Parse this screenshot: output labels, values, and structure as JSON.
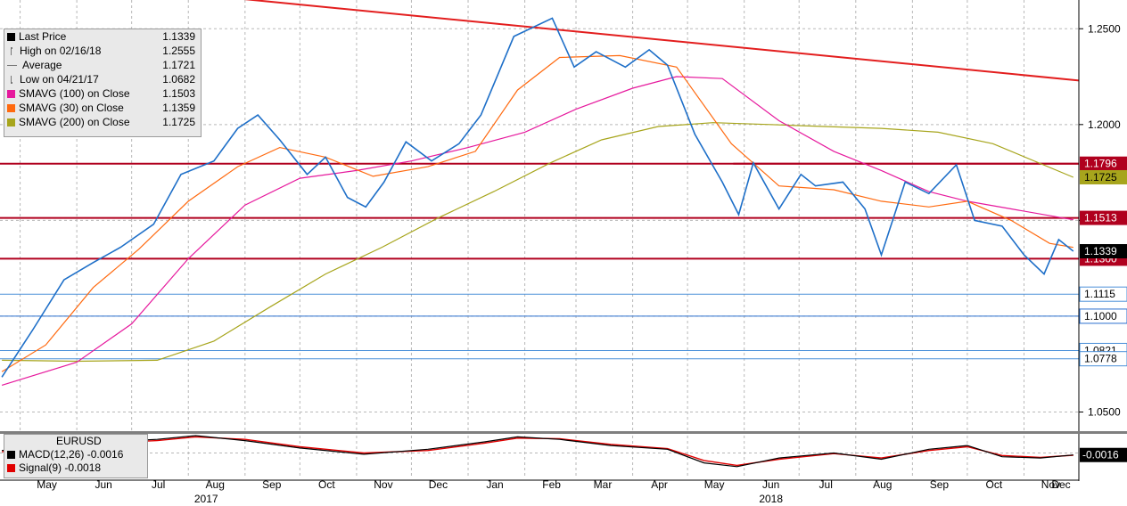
{
  "legend": {
    "items": [
      {
        "label": "Last Price",
        "value": "1.1339",
        "color": "#000000",
        "icon": "square"
      },
      {
        "label": "High on 02/16/18",
        "value": "1.2555",
        "color": "#777777",
        "icon": "high-marker"
      },
      {
        "label": "Average",
        "value": "1.1721",
        "color": "#777777",
        "icon": "average-marker"
      },
      {
        "label": "Low on 04/21/17",
        "value": "1.0682",
        "color": "#777777",
        "icon": "low-marker"
      },
      {
        "label": "SMAVG (100)  on Close",
        "value": "1.1503",
        "color": "#e6199d",
        "icon": "square"
      },
      {
        "label": "SMAVG (30)  on Close",
        "value": "1.1359",
        "color": "#ff6a10",
        "icon": "square"
      },
      {
        "label": "SMAVG (200)  on Close",
        "value": "1.1725",
        "color": "#a7a51c",
        "icon": "square"
      }
    ]
  },
  "macd_legend": {
    "title": "EURUSD",
    "items": [
      {
        "label": "MACD(12,26)",
        "value": "-0.0016",
        "color": "#000000"
      },
      {
        "label": "Signal(9)",
        "value": "-0.0018",
        "color": "#e00000"
      }
    ]
  },
  "chart_data": {
    "type": "line",
    "ylim": [
      1.04,
      1.265
    ],
    "y_ticks": [
      "1.2500",
      "1.2000",
      "1.1500",
      "1.1000",
      "1.0500"
    ],
    "x_ticks": [
      "May",
      "Jun",
      "Jul",
      "Aug",
      "Sep",
      "Oct",
      "Nov",
      "Dec",
      "Jan",
      "Feb",
      "Mar",
      "Apr",
      "May",
      "Jun",
      "Jul",
      "Aug",
      "Sep",
      "Oct",
      "Nov",
      "Dec"
    ],
    "year_labels": [
      "2017",
      "2018"
    ],
    "x_start": "2017-04-20",
    "x_end": "2018-12-01",
    "series": [
      {
        "name": "Last Price",
        "color": "#1e6fc8",
        "dates": [
          "2017-04-21",
          "2017-05-08",
          "2017-05-25",
          "2017-06-10",
          "2017-06-25",
          "2017-07-13",
          "2017-07-28",
          "2017-08-15",
          "2017-08-28",
          "2017-09-08",
          "2017-09-20",
          "2017-10-05",
          "2017-10-15",
          "2017-10-27",
          "2017-11-06",
          "2017-11-16",
          "2017-11-28",
          "2017-12-12",
          "2017-12-27",
          "2018-01-08",
          "2018-01-26",
          "2018-02-16",
          "2018-02-28",
          "2018-03-12",
          "2018-03-28",
          "2018-04-10",
          "2018-04-20",
          "2018-05-05",
          "2018-05-20",
          "2018-05-29",
          "2018-06-06",
          "2018-06-20",
          "2018-07-02",
          "2018-07-10",
          "2018-07-25",
          "2018-08-06",
          "2018-08-15",
          "2018-08-28",
          "2018-09-10",
          "2018-09-25",
          "2018-10-05",
          "2018-10-20",
          "2018-11-01",
          "2018-11-12",
          "2018-11-20",
          "2018-11-28"
        ],
        "values": [
          1.0682,
          1.093,
          1.119,
          1.128,
          1.136,
          1.148,
          1.174,
          1.181,
          1.198,
          1.205,
          1.192,
          1.174,
          1.183,
          1.162,
          1.157,
          1.17,
          1.191,
          1.181,
          1.19,
          1.205,
          1.246,
          1.2555,
          1.23,
          1.238,
          1.23,
          1.239,
          1.231,
          1.195,
          1.17,
          1.153,
          1.18,
          1.156,
          1.174,
          1.168,
          1.17,
          1.156,
          1.132,
          1.17,
          1.164,
          1.179,
          1.15,
          1.147,
          1.132,
          1.122,
          1.14,
          1.1339
        ]
      },
      {
        "name": "SMAVG (30)  on Close",
        "color": "#ff6a10",
        "dates": [
          "2017-04-21",
          "2017-05-15",
          "2017-06-10",
          "2017-07-05",
          "2017-08-01",
          "2017-08-28",
          "2017-09-20",
          "2017-10-15",
          "2017-11-10",
          "2017-12-10",
          "2018-01-05",
          "2018-01-28",
          "2018-02-20",
          "2018-03-25",
          "2018-04-25",
          "2018-05-25",
          "2018-06-20",
          "2018-07-20",
          "2018-08-15",
          "2018-09-10",
          "2018-10-01",
          "2018-10-25",
          "2018-11-15",
          "2018-11-28"
        ],
        "values": [
          1.071,
          1.085,
          1.115,
          1.135,
          1.16,
          1.178,
          1.188,
          1.183,
          1.173,
          1.178,
          1.186,
          1.218,
          1.235,
          1.236,
          1.23,
          1.19,
          1.168,
          1.166,
          1.16,
          1.157,
          1.16,
          1.15,
          1.138,
          1.1359
        ]
      },
      {
        "name": "SMAVG (100)  on Close",
        "color": "#e6199d",
        "dates": [
          "2017-04-21",
          "2017-06-01",
          "2017-07-01",
          "2017-08-01",
          "2017-09-01",
          "2017-10-01",
          "2017-11-01",
          "2017-12-01",
          "2018-01-01",
          "2018-02-01",
          "2018-03-01",
          "2018-04-01",
          "2018-04-25",
          "2018-05-20",
          "2018-06-20",
          "2018-07-20",
          "2018-08-15",
          "2018-09-10",
          "2018-10-01",
          "2018-10-25",
          "2018-11-28"
        ],
        "values": [
          1.064,
          1.076,
          1.096,
          1.13,
          1.158,
          1.172,
          1.176,
          1.181,
          1.188,
          1.196,
          1.208,
          1.219,
          1.225,
          1.224,
          1.202,
          1.186,
          1.176,
          1.165,
          1.16,
          1.156,
          1.1503
        ]
      },
      {
        "name": "SMAVG (200)  on Close",
        "color": "#a7a51c",
        "dates": [
          "2017-04-21",
          "2017-06-01",
          "2017-07-15",
          "2017-08-15",
          "2017-09-15",
          "2017-10-15",
          "2017-11-15",
          "2017-12-15",
          "2018-01-15",
          "2018-02-15",
          "2018-03-15",
          "2018-04-15",
          "2018-05-15",
          "2018-06-15",
          "2018-07-15",
          "2018-08-15",
          "2018-09-15",
          "2018-10-15",
          "2018-11-28"
        ],
        "values": [
          1.077,
          1.0765,
          1.077,
          1.087,
          1.105,
          1.122,
          1.136,
          1.151,
          1.165,
          1.18,
          1.192,
          1.199,
          1.201,
          1.2,
          1.199,
          1.198,
          1.196,
          1.19,
          1.1725
        ]
      }
    ],
    "trendline": {
      "color": "#e31e1e",
      "dates": [
        "2017-01-01",
        "2018-12-01"
      ],
      "values": [
        1.288,
        1.223
      ]
    },
    "horizontal_lines": [
      {
        "value": 1.1796,
        "label": "1.1796",
        "color": "#b0001e",
        "style": "box"
      },
      {
        "value": 1.1513,
        "label": "1.1513",
        "color": "#b0001e",
        "style": "box"
      },
      {
        "value": 1.13,
        "label": "1.1300",
        "color": "#b0001e",
        "style": "box"
      },
      {
        "value": 1.1115,
        "label": "1.1115",
        "color": "#4a90d9",
        "style": "outline"
      },
      {
        "value": 1.1,
        "label": "1.1000",
        "color": "#2a6fcf",
        "style": "outline"
      },
      {
        "value": 1.0821,
        "label": "1.0821",
        "color": "#4a90d9",
        "style": "outline"
      },
      {
        "value": 1.0778,
        "label": "1.0778",
        "color": "#4a90d9",
        "style": "outline"
      }
    ],
    "price_tags": [
      {
        "value": 1.1725,
        "label": "1.1725",
        "color": "#a7a51c"
      },
      {
        "value": 1.1339,
        "label": "1.1339",
        "color": "#000000"
      }
    ],
    "macd": {
      "current_label": "-0.0016",
      "ylim": [
        -0.014,
        0.014
      ],
      "dates": [
        "2017-04-21",
        "2017-05-15",
        "2017-06-15",
        "2017-07-15",
        "2017-08-05",
        "2017-09-01",
        "2017-10-01",
        "2017-11-05",
        "2017-12-10",
        "2018-01-10",
        "2018-01-28",
        "2018-02-20",
        "2018-03-20",
        "2018-04-20",
        "2018-05-10",
        "2018-05-28",
        "2018-06-20",
        "2018-07-20",
        "2018-08-15",
        "2018-09-10",
        "2018-10-01",
        "2018-10-20",
        "2018-11-10",
        "2018-11-28"
      ],
      "macd_values": [
        0.002,
        0.006,
        0.009,
        0.011,
        0.014,
        0.01,
        0.004,
        -0.001,
        0.003,
        0.009,
        0.013,
        0.011,
        0.006,
        0.003,
        -0.008,
        -0.011,
        -0.004,
        0.0,
        -0.005,
        0.003,
        0.006,
        -0.003,
        -0.004,
        -0.0016
      ],
      "signal_values": [
        0.001,
        0.005,
        0.008,
        0.01,
        0.013,
        0.011,
        0.005,
        0.0,
        0.002,
        0.008,
        0.012,
        0.0115,
        0.007,
        0.0035,
        -0.006,
        -0.01,
        -0.005,
        -0.0005,
        -0.004,
        0.002,
        0.005,
        -0.002,
        -0.0035,
        -0.0018
      ]
    }
  }
}
